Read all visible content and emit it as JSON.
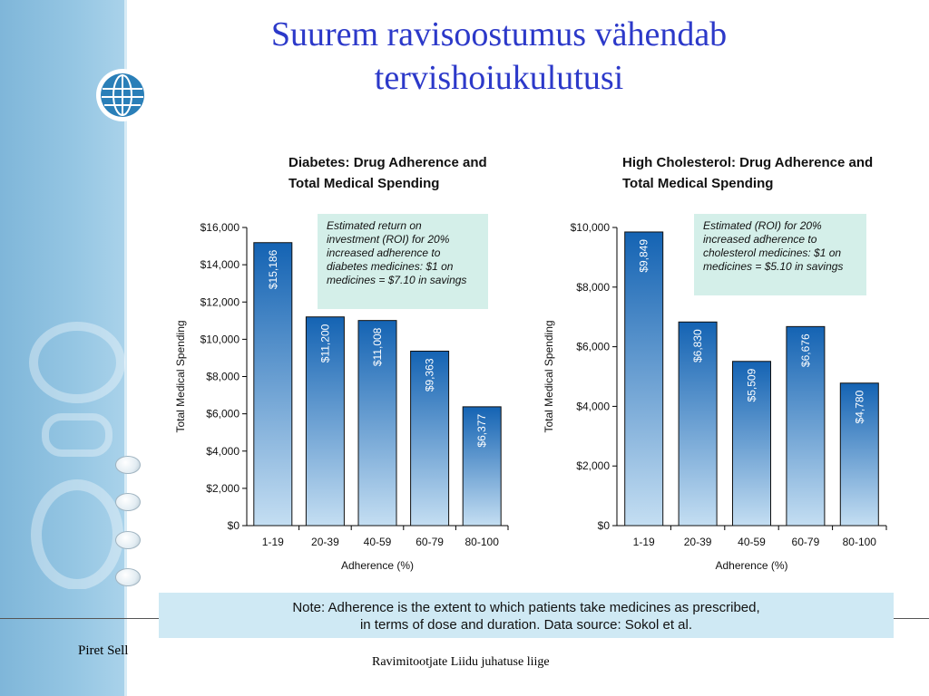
{
  "slide": {
    "title_lines": [
      "Suurem ravisoostumus vähendab",
      "tervishoiukulutusi"
    ],
    "note_lines": [
      "Note: Adherence is the extent to which patients take medicines as prescribed,",
      "in terms of dose and duration. Data source: Sokol et al."
    ],
    "footer_author": "Piret Sell",
    "footer_org": "Ravimitootjate Liidu juhatuse liige",
    "colors": {
      "title": "#2c39c9",
      "bar_dark": "#1463b3",
      "bar_light": "#c4def2",
      "callout_bg": "#d4efe9",
      "note_bg": "#cfe9f4"
    }
  },
  "chart_data": [
    {
      "type": "bar",
      "title_lines": [
        "Diabetes: Drug Adherence and",
        "Total Medical Spending"
      ],
      "categories": [
        "1-19",
        "20-39",
        "40-59",
        "60-79",
        "80-100"
      ],
      "values": [
        15186,
        11200,
        11008,
        9363,
        6377
      ],
      "value_labels": [
        "$15,186",
        "$11,200",
        "$11,008",
        "$9,363",
        "$6,377"
      ],
      "xlabel": "Adherence (%)",
      "ylabel": "Total Medical Spending",
      "ylim": [
        0,
        16000
      ],
      "yticks": [
        "$0",
        "$2,000",
        "$4,000",
        "$6,000",
        "$8,000",
        "$10,000",
        "$12,000",
        "$14,000",
        "$16,000"
      ],
      "annotation_lines": [
        "Estimated return on",
        "investment (ROI) for 20%",
        "increased adherence to",
        "diabetes medicines: $1 on",
        "medicines = $7.10 in savings"
      ],
      "grid": false,
      "legend": "none"
    },
    {
      "type": "bar",
      "title_lines": [
        "High Cholesterol: Drug Adherence and",
        "Total Medical Spending"
      ],
      "categories": [
        "1-19",
        "20-39",
        "40-59",
        "60-79",
        "80-100"
      ],
      "values": [
        9849,
        6830,
        5509,
        6676,
        4780
      ],
      "value_labels": [
        "$9,849",
        "$6,830",
        "$5,509",
        "$6,676",
        "$4,780"
      ],
      "xlabel": "Adherence (%)",
      "ylabel": "Total Medical Spending",
      "ylim": [
        0,
        10000
      ],
      "yticks": [
        "$0",
        "$2,000",
        "$4,000",
        "$6,000",
        "$8,000",
        "$10,000"
      ],
      "annotation_lines": [
        "Estimated (ROI) for 20%",
        "increased adherence to",
        "cholesterol medicines: $1 on",
        "medicines = $5.10 in savings"
      ],
      "grid": false,
      "legend": "none"
    }
  ]
}
